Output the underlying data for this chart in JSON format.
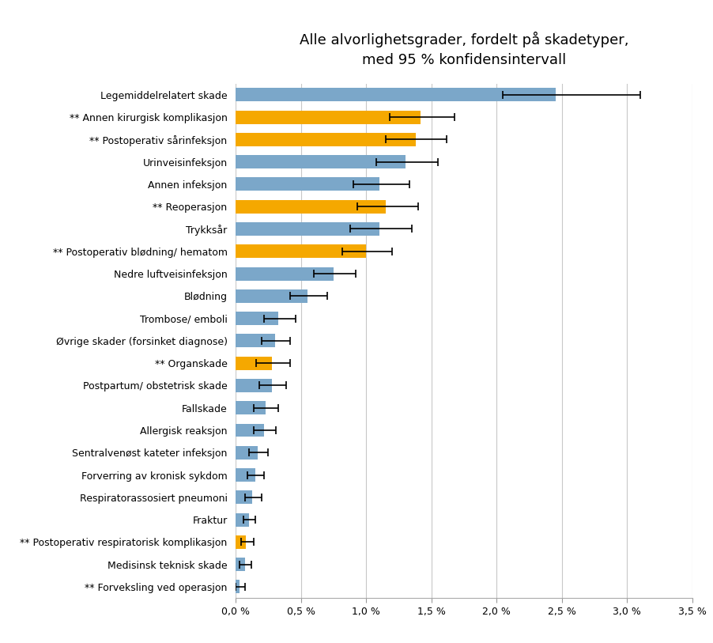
{
  "title": "Alle alvorlighetsgrader, fordelt på skadetyper,\nmed 95 % konfidensintervall",
  "categories": [
    "** Forveksling ved operasjon",
    "Medisinsk teknisk skade",
    "** Postoperativ respiratorisk komplikasjon",
    "Fraktur",
    "Respiratorassosiert pneumoni",
    "Forverring av kronisk sykdom",
    "Sentralvenøst kateter infeksjon",
    "Allergisk reaksjon",
    "Fallskade",
    "Postpartum/ obstetrisk skade",
    "** Organskade",
    "Øvrige skader (forsinket diagnose)",
    "Trombose/ emboli",
    "Blødning",
    "Nedre luftveisinfeksjon",
    "** Postoperativ blødning/ hematom",
    "Trykksår",
    "** Reoperasjon",
    "Annen infeksjon",
    "Urinveisinfeksjon",
    "** Postoperativ sårinfeksjon",
    "** Annen kirurgisk komplikasjon",
    "Legemiddelrelatert skade"
  ],
  "values": [
    0.03,
    0.07,
    0.08,
    0.1,
    0.13,
    0.15,
    0.17,
    0.22,
    0.23,
    0.28,
    0.28,
    0.3,
    0.33,
    0.55,
    0.75,
    1.0,
    1.1,
    1.15,
    1.1,
    1.3,
    1.38,
    1.42,
    2.45
  ],
  "ci_lower": [
    0.0,
    0.03,
    0.04,
    0.06,
    0.07,
    0.09,
    0.1,
    0.14,
    0.14,
    0.18,
    0.16,
    0.2,
    0.22,
    0.42,
    0.6,
    0.82,
    0.88,
    0.93,
    0.9,
    1.08,
    1.15,
    1.18,
    2.05
  ],
  "ci_upper": [
    0.07,
    0.12,
    0.14,
    0.15,
    0.2,
    0.22,
    0.25,
    0.31,
    0.33,
    0.39,
    0.42,
    0.42,
    0.46,
    0.7,
    0.92,
    1.2,
    1.35,
    1.4,
    1.33,
    1.55,
    1.62,
    1.68,
    3.1
  ],
  "bar_colors": [
    "#7ba7c9",
    "#7ba7c9",
    "#f5a800",
    "#7ba7c9",
    "#7ba7c9",
    "#7ba7c9",
    "#7ba7c9",
    "#7ba7c9",
    "#7ba7c9",
    "#7ba7c9",
    "#f5a800",
    "#7ba7c9",
    "#7ba7c9",
    "#7ba7c9",
    "#7ba7c9",
    "#f5a800",
    "#7ba7c9",
    "#f5a800",
    "#7ba7c9",
    "#7ba7c9",
    "#f5a800",
    "#f5a800",
    "#7ba7c9"
  ],
  "xlim": [
    0,
    3.5
  ],
  "xticks": [
    0.0,
    0.5,
    1.0,
    1.5,
    2.0,
    2.5,
    3.0,
    3.5
  ],
  "xtick_labels": [
    "0,0 %",
    "0,5 %",
    "1,0 %",
    "1,5 %",
    "2,0 %",
    "2,5 %",
    "3,0 %",
    "3,5 %"
  ],
  "background_color": "#ffffff",
  "plot_bg_color": "#ffffff",
  "title_fontsize": 13,
  "label_fontsize": 9,
  "tick_fontsize": 9,
  "grid_color": "#c8c8c8"
}
